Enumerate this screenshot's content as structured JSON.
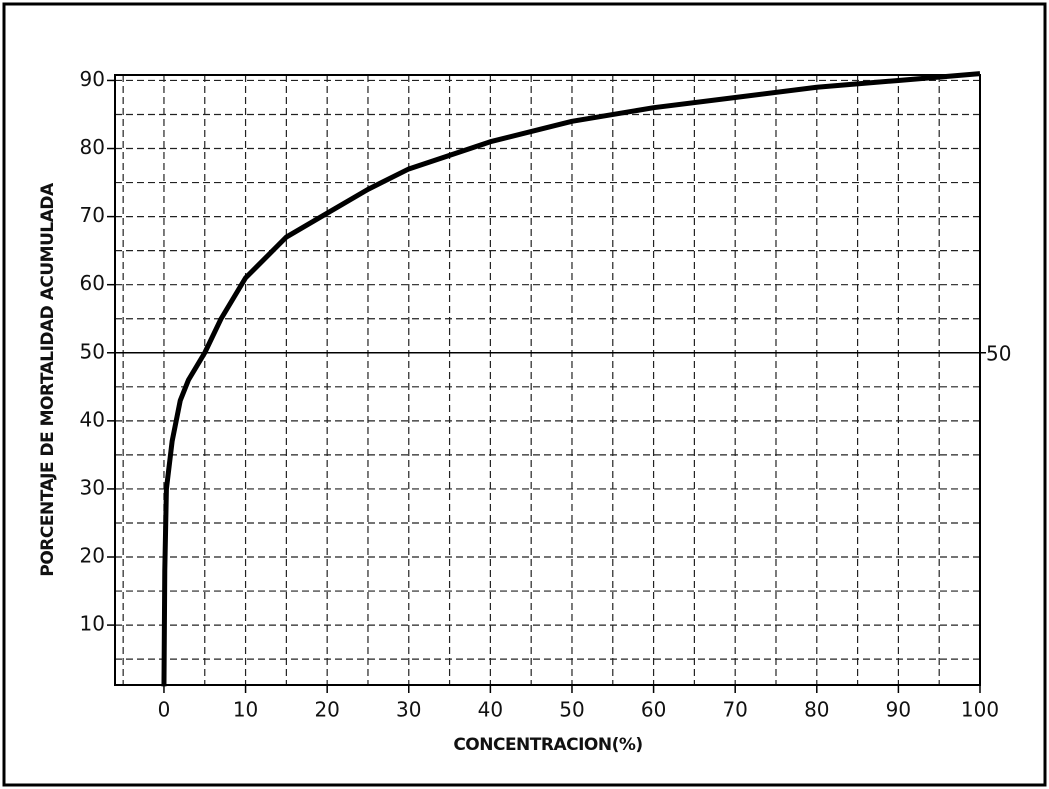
{
  "chart_data": {
    "type": "line",
    "x_label": "CONCENTRACION(%)",
    "y_label": "PORCENTAJE DE MORTALIDAD ACUMULADA",
    "x": [
      0,
      0.1,
      0.3,
      1,
      2,
      3,
      5,
      7,
      10,
      15,
      20,
      25,
      30,
      40,
      50,
      60,
      70,
      80,
      90,
      100
    ],
    "series": [
      {
        "color": "#000000",
        "values": [
          1,
          18,
          30,
          37,
          43,
          46,
          50,
          55,
          61,
          67,
          70.5,
          74,
          77,
          81,
          84,
          86,
          87.5,
          89,
          90,
          91
        ]
      }
    ],
    "xlim": [
      -6,
      100
    ],
    "ylim": [
      1.2,
      90.8
    ],
    "xticks": [
      0,
      10,
      20,
      30,
      40,
      50,
      60,
      70,
      80,
      90,
      100
    ],
    "yticks": [
      10,
      20,
      30,
      40,
      50,
      60,
      70,
      80,
      90
    ],
    "x_minor_grid": [
      -5,
      5,
      15,
      25,
      35,
      45,
      55,
      65,
      75,
      85,
      95
    ],
    "y_minor_grid": [
      5,
      15,
      25,
      35,
      45,
      55,
      65,
      75,
      85
    ],
    "hline": 50,
    "grid": true
  }
}
